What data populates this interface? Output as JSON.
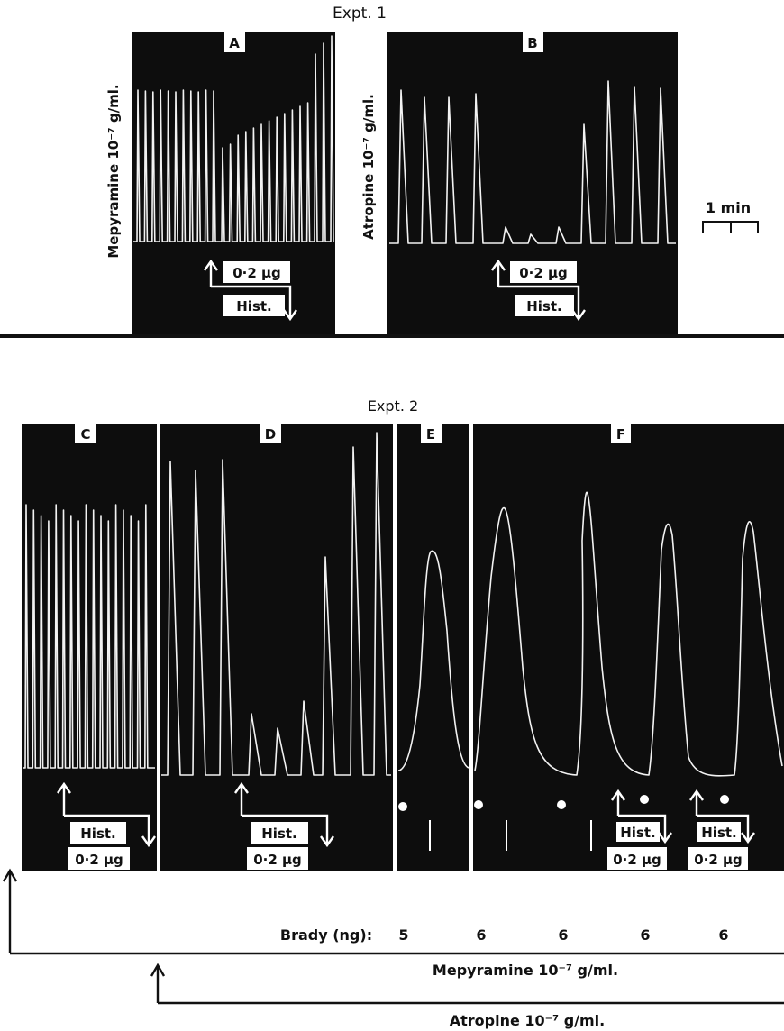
{
  "expt1": {
    "title": "Expt. 1",
    "panel_a": {
      "letter": "A",
      "side_label": "Mepyramine 10⁻⁷ g/ml.",
      "dose": "0·2 μg",
      "agent": "Hist."
    },
    "panel_b": {
      "letter": "B",
      "side_label": "Atropine 10⁻⁷ g/ml.",
      "dose": "0·2 μg",
      "agent": "Hist."
    },
    "scale_bar": "1 min"
  },
  "expt2": {
    "title": "Expt. 2",
    "panel_c": {
      "letter": "C",
      "agent": "Hist.",
      "dose": "0·2 μg"
    },
    "panel_d": {
      "letter": "D",
      "agent": "Hist.",
      "dose": "0·2 μg"
    },
    "panel_e": {
      "letter": "E"
    },
    "panel_f": {
      "letter": "F",
      "agent": "Hist.",
      "dose": "0·2 μg",
      "agent2": "Hist.",
      "dose2": "0·2 μg"
    },
    "brady_label": "Brady (ng):",
    "brady_doses": [
      "5",
      "6",
      "6",
      "6",
      "6"
    ],
    "mepyramine_label": "Mepyramine 10⁻⁷ g/ml.",
    "atropine_label": "Atropine 10⁻⁷ g/ml."
  }
}
